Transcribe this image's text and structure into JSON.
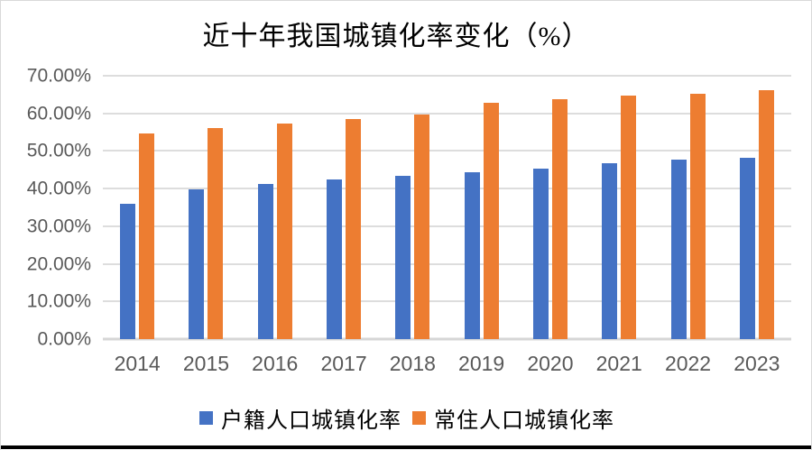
{
  "chart_data": {
    "type": "bar",
    "title": "近十年我国城镇化率变化（%）",
    "categories": [
      "2014",
      "2015",
      "2016",
      "2017",
      "2018",
      "2019",
      "2020",
      "2021",
      "2022",
      "2023"
    ],
    "series": [
      {
        "name": "户籍人口城镇化率",
        "color": "#4472C4",
        "values": [
          35.9,
          39.9,
          41.2,
          42.35,
          43.37,
          44.38,
          45.4,
          46.7,
          47.7,
          48.3
        ]
      },
      {
        "name": "常住人口城镇化率",
        "color": "#ED7D31",
        "values": [
          54.77,
          56.1,
          57.35,
          58.52,
          59.58,
          62.71,
          63.89,
          64.72,
          65.22,
          66.16
        ]
      }
    ],
    "xlabel": "",
    "ylabel": "",
    "ylim": [
      0,
      70
    ],
    "ytick_step": 10,
    "yticks": [
      "0.00%",
      "10.00%",
      "20.00%",
      "30.00%",
      "40.00%",
      "50.00%",
      "60.00%",
      "70.00%"
    ],
    "grid": true,
    "legend_position": "bottom"
  },
  "colors": {
    "bar_blue": "#4472C4",
    "bar_orange": "#ED7D31",
    "gridline": "#DDDDDD",
    "axis_label": "#595959",
    "title_text": "#000000",
    "page_border": "#D9D9D9",
    "bottom_bar": "#000000"
  }
}
